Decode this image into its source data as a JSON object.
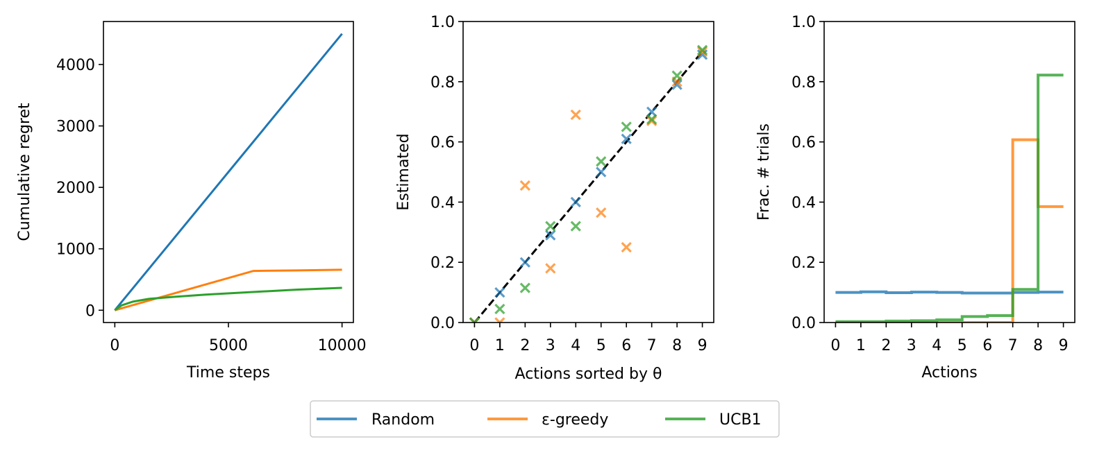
{
  "colors": {
    "random": "#1f77b4",
    "egreedy": "#ff7f0e",
    "ucb1": "#2ca02c",
    "reference": "#000000"
  },
  "legend": {
    "entries": [
      {
        "key": "random",
        "label": "Random"
      },
      {
        "key": "egreedy",
        "label": "ε-greedy"
      },
      {
        "key": "ucb1",
        "label": "UCB1"
      }
    ]
  },
  "chart_data": [
    {
      "type": "line",
      "title": "",
      "xlabel": "Time steps",
      "ylabel": "Cumulative regret",
      "xlim": [
        -500,
        10500
      ],
      "ylim": [
        -200,
        4700
      ],
      "xticks": [
        0,
        5000,
        10000
      ],
      "xtick_labels": [
        "0",
        "5000",
        "10000"
      ],
      "yticks": [
        0,
        1000,
        2000,
        3000,
        4000
      ],
      "ytick_labels": [
        "0",
        "1000",
        "2000",
        "3000",
        "4000"
      ],
      "grid": false,
      "series": [
        {
          "key": "random",
          "name": "Random",
          "x": [
            0,
            2500,
            5000,
            7500,
            10000
          ],
          "y": [
            0,
            1125,
            2250,
            3375,
            4500
          ]
        },
        {
          "key": "egreedy",
          "name": "ε-greedy",
          "x": [
            0,
            2000,
            4000,
            6100,
            8000,
            10000
          ],
          "y": [
            0,
            210,
            420,
            640,
            648,
            660
          ]
        },
        {
          "key": "ucb1",
          "name": "UCB1",
          "x": [
            0,
            300,
            800,
            1500,
            2500,
            4000,
            6000,
            8000,
            10000
          ],
          "y": [
            0,
            80,
            140,
            185,
            215,
            255,
            295,
            335,
            365
          ]
        }
      ]
    },
    {
      "type": "scatter",
      "title": "",
      "xlabel": "Actions sorted by θ",
      "ylabel": "Estimated",
      "xlim": [
        -0.45,
        9.45
      ],
      "ylim": [
        0.0,
        1.0
      ],
      "xticks": [
        0,
        1,
        2,
        3,
        4,
        5,
        6,
        7,
        8,
        9
      ],
      "xtick_labels": [
        "0",
        "1",
        "2",
        "3",
        "4",
        "5",
        "6",
        "7",
        "8",
        "9"
      ],
      "yticks": [
        0.0,
        0.2,
        0.4,
        0.6,
        0.8,
        1.0
      ],
      "ytick_labels": [
        "0.0",
        "0.2",
        "0.4",
        "0.6",
        "0.8",
        "1.0"
      ],
      "grid": false,
      "reference_line": {
        "x": [
          0,
          9
        ],
        "y": [
          0.0,
          0.9
        ],
        "style": "dashed"
      },
      "series": [
        {
          "key": "random",
          "name": "Random",
          "x": [
            0,
            1,
            2,
            3,
            4,
            5,
            6,
            7,
            8,
            9
          ],
          "y": [
            0.0,
            0.1,
            0.2,
            0.29,
            0.4,
            0.5,
            0.61,
            0.7,
            0.79,
            0.89
          ]
        },
        {
          "key": "egreedy",
          "name": "ε-greedy",
          "x": [
            0,
            1,
            2,
            3,
            4,
            5,
            6,
            7,
            8,
            9
          ],
          "y": [
            0.0,
            0.0,
            0.455,
            0.18,
            0.69,
            0.365,
            0.25,
            0.67,
            0.8,
            0.9
          ]
        },
        {
          "key": "ucb1",
          "name": "UCB1",
          "x": [
            0,
            1,
            2,
            3,
            4,
            5,
            6,
            7,
            8,
            9
          ],
          "y": [
            0.0,
            0.045,
            0.115,
            0.32,
            0.32,
            0.535,
            0.65,
            0.675,
            0.82,
            0.905
          ]
        }
      ]
    },
    {
      "type": "line",
      "title": "",
      "xlabel": "Actions",
      "ylabel": "Frac. # trials",
      "xlim": [
        -0.45,
        9.45
      ],
      "ylim": [
        0.0,
        1.0
      ],
      "xticks": [
        0,
        1,
        2,
        3,
        4,
        5,
        6,
        7,
        8,
        9
      ],
      "xtick_labels": [
        "0",
        "1",
        "2",
        "3",
        "4",
        "5",
        "6",
        "7",
        "8",
        "9"
      ],
      "yticks": [
        0.0,
        0.2,
        0.4,
        0.6,
        0.8,
        1.0
      ],
      "ytick_labels": [
        "0.0",
        "0.2",
        "0.4",
        "0.6",
        "0.8",
        "1.0"
      ],
      "grid": false,
      "step": true,
      "series": [
        {
          "key": "random",
          "name": "Random",
          "x": [
            0,
            1,
            2,
            3,
            4,
            5,
            6,
            7,
            8,
            9
          ],
          "y": [
            0.1,
            0.102,
            0.099,
            0.101,
            0.1,
            0.098,
            0.098,
            0.1,
            0.101,
            0.101
          ]
        },
        {
          "key": "egreedy",
          "name": "ε-greedy",
          "x": [
            0,
            1,
            2,
            3,
            4,
            5,
            6,
            7,
            8,
            9
          ],
          "y": [
            0.0,
            0.0,
            0.0,
            0.0,
            0.0,
            0.0,
            0.0,
            0.607,
            0.385,
            0.385
          ]
        },
        {
          "key": "ucb1",
          "name": "UCB1",
          "x": [
            0,
            1,
            2,
            3,
            4,
            5,
            6,
            7,
            8,
            9
          ],
          "y": [
            0.003,
            0.003,
            0.005,
            0.006,
            0.009,
            0.02,
            0.023,
            0.11,
            0.822,
            0.822
          ]
        }
      ]
    }
  ]
}
